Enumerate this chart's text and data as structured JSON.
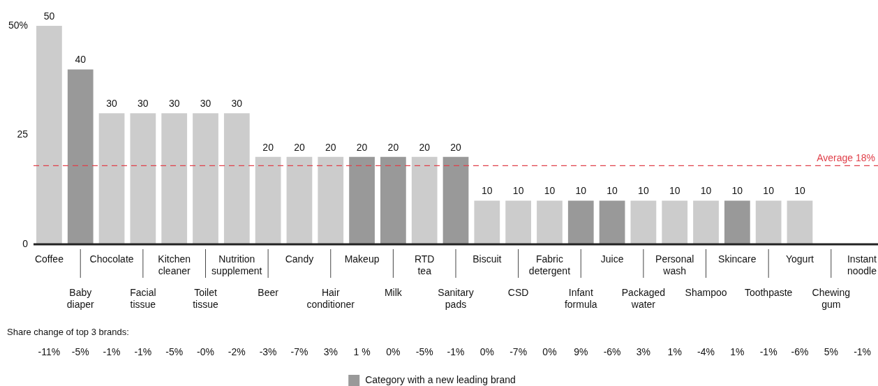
{
  "chart_data": {
    "type": "bar",
    "stacked": true,
    "categories": [
      "Coffee",
      "Baby diaper",
      "Chocolate",
      "Facial tissue",
      "Kitchen cleaner",
      "Toilet tissue",
      "Nutrition supplement",
      "Beer",
      "Candy",
      "Hair conditioner",
      "Makeup",
      "Milk",
      "RTD tea",
      "Sanitary pads",
      "Biscuit",
      "CSD",
      "Fabric detergent",
      "Infant formula",
      "Juice",
      "Packaged water",
      "Personal wash",
      "Shampoo",
      "Skincare",
      "Toothpaste",
      "Yogurt",
      "Chewing gum",
      "Instant noodle"
    ],
    "series": [
      {
        "color": "#cccccc",
        "values": [
          50,
          null,
          30,
          30,
          30,
          30,
          30,
          20,
          20,
          20,
          null,
          null,
          20,
          null,
          10,
          10,
          10,
          null,
          null,
          10,
          10,
          10,
          null,
          10,
          10,
          null,
          null
        ],
        "value_labels": [
          "50",
          null,
          "30",
          "30",
          "30",
          "30",
          "30",
          "20",
          "20",
          "20",
          null,
          null,
          "20",
          null,
          "10",
          "10",
          "10",
          null,
          null,
          "10",
          "10",
          "10",
          null,
          "10",
          "10",
          null,
          null
        ]
      },
      {
        "name": "Category with a new leading brand",
        "color": "#999999",
        "values": [
          null,
          40,
          null,
          null,
          null,
          null,
          null,
          null,
          null,
          null,
          20,
          20,
          null,
          20,
          null,
          null,
          null,
          10,
          10,
          null,
          null,
          null,
          10,
          null,
          null,
          null,
          null
        ],
        "value_labels": [
          null,
          "40",
          null,
          null,
          null,
          null,
          null,
          null,
          null,
          null,
          "20",
          "20",
          null,
          "20",
          null,
          null,
          null,
          "10",
          "10",
          null,
          null,
          null,
          "10",
          null,
          null,
          null,
          null
        ]
      }
    ],
    "ylim": [
      0,
      50
    ],
    "yticks": [
      0,
      25,
      {
        "value": 50,
        "label": "50%"
      }
    ],
    "ref_lines": [
      {
        "axis": "y",
        "value": 18,
        "label": "Average 18%",
        "color": "#e0404a",
        "line_style": "dashed"
      }
    ],
    "annotations": [
      "Share change of top 3 brands:",
      "-11%",
      "-5%",
      "-1%",
      "-1%",
      "-5%",
      "-0%",
      "-2%",
      "-3%",
      "-7%",
      "3%",
      "1 %",
      "0%",
      "-5%",
      "-1%",
      "0%",
      "-7%",
      "0%",
      "9%",
      "-6%",
      "3%",
      "1%",
      "-4%",
      "1%",
      "-1%",
      "-6%",
      "5%",
      "-1%"
    ],
    "grid": false,
    "legend": "bottom"
  }
}
